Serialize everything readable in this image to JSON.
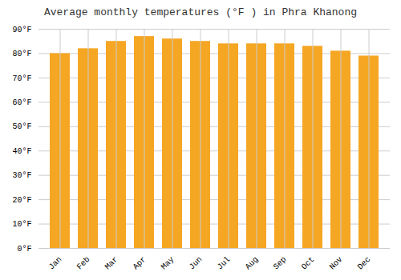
{
  "chart_data": {
    "type": "bar",
    "title": "Average monthly temperatures (°F ) in Phra Khanong",
    "categories": [
      "Jan",
      "Feb",
      "Mar",
      "Apr",
      "May",
      "Jun",
      "Jul",
      "Aug",
      "Sep",
      "Oct",
      "Nov",
      "Dec"
    ],
    "values": [
      80,
      82,
      85,
      87,
      86,
      85,
      84,
      84,
      84,
      83,
      81,
      79
    ],
    "color": "#F5A623",
    "ylim": [
      0,
      90
    ],
    "yticks": [
      {
        "value": 0,
        "label": "0°F"
      },
      {
        "value": 10,
        "label": "10°F"
      },
      {
        "value": 20,
        "label": "20°F"
      },
      {
        "value": 30,
        "label": "30°F"
      },
      {
        "value": 40,
        "label": "40°F"
      },
      {
        "value": 50,
        "label": "50°F"
      },
      {
        "value": 60,
        "label": "60°F"
      },
      {
        "value": 70,
        "label": "70°F"
      },
      {
        "value": 80,
        "label": "80°F"
      },
      {
        "value": 90,
        "label": "90°F"
      }
    ],
    "grid": true
  }
}
